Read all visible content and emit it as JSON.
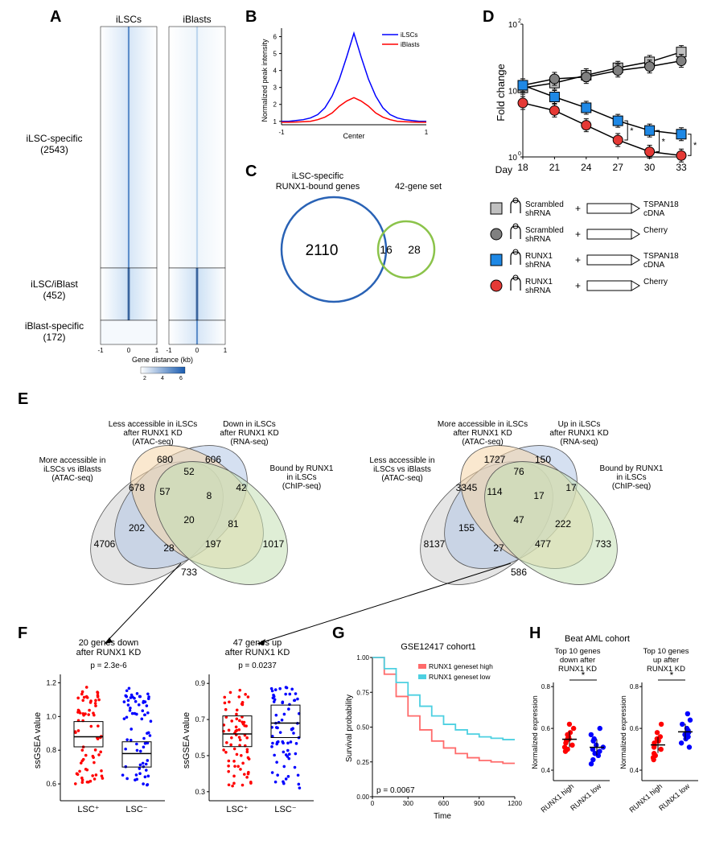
{
  "panelA": {
    "label": "A",
    "col_headers": [
      "iLSCs",
      "iBlasts"
    ],
    "rows": [
      {
        "label": "iLSC-specific",
        "count": "(2543)"
      },
      {
        "label": "iLSC/iBlast",
        "count": "(452)"
      },
      {
        "label": "iBlast-specific",
        "count": "(172)"
      }
    ],
    "x_label": "Gene distance (kb)",
    "x_ticks": [
      "-1",
      "0",
      "1"
    ],
    "colorbar": {
      "min": "2",
      "mid": "4",
      "max": "6"
    },
    "heatmap_color": "#3a7bd5"
  },
  "panelB": {
    "label": "B",
    "y_label": "Normalized peak intensity",
    "x_label": "Center",
    "x_ticks": [
      "-1",
      "1"
    ],
    "y_ticks": [
      "1",
      "2",
      "3",
      "4",
      "5",
      "6"
    ],
    "series": [
      {
        "name": "iLSCs",
        "color": "#0000ff"
      },
      {
        "name": "iBlasts",
        "color": "#ff0000"
      }
    ],
    "iLSC_curve": [
      1,
      1,
      1.05,
      1.1,
      1.2,
      1.4,
      1.8,
      2.5,
      3.5,
      4.8,
      6.2,
      4.8,
      3.5,
      2.5,
      1.8,
      1.4,
      1.2,
      1.1,
      1.05,
      1,
      1
    ],
    "iBlast_curve": [
      0.95,
      0.95,
      0.96,
      0.98,
      1.0,
      1.1,
      1.25,
      1.5,
      1.9,
      2.2,
      2.4,
      2.2,
      1.9,
      1.5,
      1.25,
      1.1,
      1.0,
      0.98,
      0.96,
      0.95,
      0.95
    ]
  },
  "panelC": {
    "label": "C",
    "left_title": "iLSC-specific\nRUNX1-bound genes",
    "right_title": "42-gene set",
    "left_count": "2110",
    "overlap": "16",
    "right_count": "28",
    "left_color": "#2962b5",
    "right_color": "#8bc34a"
  },
  "panelD": {
    "label": "D",
    "y_label": "Fold change",
    "x_label": "Day",
    "x_ticks": [
      "18",
      "21",
      "24",
      "27",
      "30",
      "33"
    ],
    "y_ticks": [
      "10",
      "10",
      "10"
    ],
    "y_exp": [
      "0",
      "1",
      "2"
    ],
    "legend": [
      {
        "shape": "square",
        "color": "#c0c0c0",
        "sh": "Scrambled shRNA",
        "cdna": "TSPAN18 cDNA"
      },
      {
        "shape": "circle",
        "color": "#808080",
        "sh": "Scrambled shRNA",
        "cdna": "Cherry"
      },
      {
        "shape": "square",
        "color": "#1e88e5",
        "sh": "RUNX1 shRNA",
        "cdna": "TSPAN18 cDNA"
      },
      {
        "shape": "circle",
        "color": "#e53935",
        "sh": "RUNX1 shRNA",
        "cdna": "Cherry"
      }
    ],
    "series_data": {
      "scr_tspan": [
        11,
        13,
        17,
        22,
        27,
        38
      ],
      "scr_cherry": [
        12,
        15,
        16,
        20,
        23,
        28
      ],
      "runx_tspan": [
        12,
        8,
        5.5,
        3.5,
        2.5,
        2.2
      ],
      "runx_cherry": [
        6.5,
        5,
        3,
        1.8,
        1.2,
        1.05
      ]
    },
    "sig_marks": [
      27,
      30,
      33
    ]
  },
  "panelE": {
    "label": "E",
    "left": {
      "set_labels": [
        "More accessible in\niLSCs vs iBlasts\n(ATAC-seq)",
        "Less accessible in iLSCs\nafter RUNX1 KD\n(ATAC-seq)",
        "Down in iLSCs\nafter RUNX1 KD\n(RNA-seq)",
        "Bound by RUNX1\nin iLSCs\n(ChIP-seq)"
      ],
      "regions": {
        "A_only": "4706",
        "B_only": "680",
        "C_only": "606",
        "D_only": "1017",
        "AB": "678",
        "BC": "52",
        "CD": "42",
        "AD": "733",
        "ABC": "57",
        "BCD": "8",
        "ACD": "28",
        "ABD": "197",
        "AC": "202",
        "BD": "81",
        "ABCD": "20"
      },
      "colors": {
        "A": "#d0d0d0",
        "B": "#b3c7e6",
        "C": "#f5d6a8",
        "D": "#c5e0b4"
      }
    },
    "right": {
      "set_labels": [
        "Less accessible in\niLSCs vs iBlasts\n(ATAC-seq)",
        "More accessible in iLSCs\nafter RUNX1 KD\n(ATAC-seq)",
        "Up in iLSCs\nafter RUNX1 KD\n(RNA-seq)",
        "Bound by RUNX1\nin iLSCs\n(ChIP-seq)"
      ],
      "regions": {
        "A_only": "8137",
        "B_only": "1727",
        "C_only": "150",
        "D_only": "733",
        "AB": "3345",
        "BC": "76",
        "CD": "17",
        "AD": "586",
        "ABC": "114",
        "BCD": "17",
        "ACD": "27",
        "ABD": "477",
        "AC": "155",
        "BD": "222",
        "ABCD": "47"
      },
      "colors": {
        "A": "#d0d0d0",
        "B": "#b3c7e6",
        "C": "#f5d6a8",
        "D": "#c5e0b4"
      }
    }
  },
  "panelF": {
    "label": "F",
    "plots": [
      {
        "title": "20 genes down\nafter RUNX1 KD",
        "pval": "p = 2.3e-6",
        "y_label": "ssGSEA value",
        "y_ticks": [
          "0.6",
          "0.8",
          "1.0",
          "1.2"
        ],
        "x_ticks": [
          "LSC⁺",
          "LSC⁻"
        ],
        "group1_color": "#ff0000",
        "group2_color": "#0000ff",
        "box1": {
          "q1": 0.82,
          "med": 0.88,
          "q3": 0.97
        },
        "box2": {
          "q1": 0.7,
          "med": 0.78,
          "q3": 0.85
        }
      },
      {
        "title": "47 genes up\nafter RUNX1 KD",
        "pval": "p = 0.0237",
        "y_label": "ssGSEA value",
        "y_ticks": [
          "0.3",
          "0.5",
          "0.7",
          "0.9"
        ],
        "x_ticks": [
          "LSC⁺",
          "LSC⁻"
        ],
        "group1_color": "#ff0000",
        "group2_color": "#0000ff",
        "box1": {
          "q1": 0.55,
          "med": 0.62,
          "q3": 0.72
        },
        "box2": {
          "q1": 0.6,
          "med": 0.68,
          "q3": 0.78
        }
      }
    ]
  },
  "panelG": {
    "label": "G",
    "title": "GSE12417 cohort1",
    "y_label": "Survival probability",
    "x_label": "Time",
    "pval": "p = 0.0067",
    "x_ticks": [
      "0",
      "300",
      "600",
      "900",
      "1200"
    ],
    "y_ticks": [
      "0.00",
      "0.25",
      "0.50",
      "0.75",
      "1.00"
    ],
    "legend": [
      {
        "name": "RUNX1 geneset high",
        "color": "#ff6b6b"
      },
      {
        "name": "RUNX1 geneset low",
        "color": "#4dd0e1"
      }
    ],
    "high_curve": [
      1.0,
      0.88,
      0.72,
      0.58,
      0.48,
      0.4,
      0.35,
      0.31,
      0.28,
      0.26,
      0.25,
      0.24,
      0.24
    ],
    "low_curve": [
      1.0,
      0.92,
      0.82,
      0.73,
      0.65,
      0.58,
      0.52,
      0.48,
      0.45,
      0.43,
      0.42,
      0.41,
      0.41
    ]
  },
  "panelH": {
    "label": "H",
    "cohort": "Beat AML cohort",
    "plots": [
      {
        "title": "Top 10 genes\ndown after\nRUNX1 KD",
        "y_label": "Normalized expression",
        "y_ticks": [
          "0.4",
          "0.6",
          "0.8"
        ],
        "x_ticks": [
          "RUNX1 high",
          "RUNX1 low"
        ],
        "sig": "*",
        "g1_color": "#ff0000",
        "g2_color": "#0000ff",
        "g1_vals": [
          0.62,
          0.6,
          0.58,
          0.57,
          0.56,
          0.55,
          0.55,
          0.54,
          0.53,
          0.52,
          0.51,
          0.5,
          0.49
        ],
        "g2_vals": [
          0.6,
          0.57,
          0.55,
          0.54,
          0.52,
          0.51,
          0.5,
          0.49,
          0.48,
          0.47,
          0.45,
          0.43
        ]
      },
      {
        "title": "Top 10 genes\nup after\nRUNX1 KD",
        "y_label": "Normalized expression",
        "y_ticks": [
          "0.4",
          "0.6",
          "0.8"
        ],
        "x_ticks": [
          "RUNX1 high",
          "RUNX1 low"
        ],
        "sig": "*",
        "g1_color": "#ff0000",
        "g2_color": "#0000ff",
        "g1_vals": [
          0.62,
          0.58,
          0.56,
          0.55,
          0.54,
          0.53,
          0.52,
          0.51,
          0.5,
          0.48,
          0.47,
          0.46,
          0.45
        ],
        "g2_vals": [
          0.67,
          0.64,
          0.62,
          0.6,
          0.59,
          0.58,
          0.57,
          0.56,
          0.55,
          0.53,
          0.51
        ]
      }
    ]
  }
}
